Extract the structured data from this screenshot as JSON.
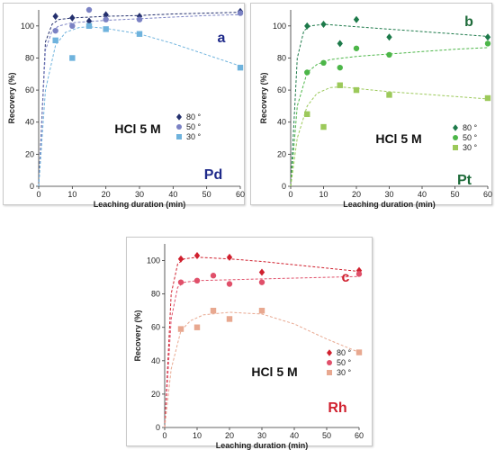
{
  "chart_data": [
    {
      "type": "scatter",
      "panel_label": "a",
      "metal_label": "Pd",
      "condition": "HCl 5 M",
      "xlabel": "Leaching duration (min)",
      "ylabel": "Recovery (%)",
      "xlim": [
        0,
        60
      ],
      "ylim": [
        0,
        110
      ],
      "xticks": [
        0,
        10,
        20,
        30,
        40,
        50,
        60
      ],
      "yticks": [
        0,
        20,
        40,
        60,
        80,
        100
      ],
      "legend_position": "right",
      "colors": {
        "metal": "#1f2a8a",
        "panel": "#1f2a8a"
      },
      "series": [
        {
          "name": "80 °",
          "marker": "diamond",
          "color": "#24306e",
          "points": [
            [
              5,
              106
            ],
            [
              10,
              105
            ],
            [
              15,
              103
            ],
            [
              20,
              107
            ],
            [
              30,
              106
            ],
            [
              60,
              109
            ]
          ],
          "fit": [
            [
              0,
              0
            ],
            [
              2,
              90
            ],
            [
              4,
              101
            ],
            [
              6,
              104
            ],
            [
              10,
              105
            ],
            [
              20,
              106
            ],
            [
              30,
              106.5
            ],
            [
              40,
              107.5
            ],
            [
              50,
              108
            ],
            [
              60,
              108.5
            ]
          ]
        },
        {
          "name": "50 °",
          "marker": "circle",
          "color": "#7b82c4",
          "points": [
            [
              5,
              97
            ],
            [
              10,
              100
            ],
            [
              15,
              110
            ],
            [
              20,
              104
            ],
            [
              30,
              104
            ],
            [
              60,
              108
            ]
          ],
          "fit": [
            [
              0,
              0
            ],
            [
              2,
              85
            ],
            [
              4,
              97
            ],
            [
              6,
              100
            ],
            [
              10,
              102
            ],
            [
              20,
              103.5
            ],
            [
              30,
              104.5
            ],
            [
              40,
              105.5
            ],
            [
              50,
              106.5
            ],
            [
              60,
              107
            ]
          ]
        },
        {
          "name": "30 °",
          "marker": "square",
          "color": "#6fb3dd",
          "points": [
            [
              5,
              91
            ],
            [
              10,
              80
            ],
            [
              15,
              100
            ],
            [
              20,
              98
            ],
            [
              30,
              95
            ],
            [
              60,
              74
            ]
          ],
          "fit": [
            [
              0,
              0
            ],
            [
              2,
              60
            ],
            [
              5,
              88
            ],
            [
              8,
              96
            ],
            [
              12,
              99
            ],
            [
              15,
              99.5
            ],
            [
              20,
              98.5
            ],
            [
              30,
              95
            ],
            [
              40,
              89
            ],
            [
              50,
              82
            ],
            [
              60,
              75
            ]
          ]
        }
      ]
    },
    {
      "type": "scatter",
      "panel_label": "b",
      "metal_label": "Pt",
      "condition": "HCl 5 M",
      "xlabel": "Leaching duration (min)",
      "ylabel": "Recovery (%)",
      "xlim": [
        0,
        60
      ],
      "ylim": [
        0,
        110
      ],
      "xticks": [
        0,
        10,
        20,
        30,
        40,
        50,
        60
      ],
      "yticks": [
        0,
        20,
        40,
        60,
        80,
        100
      ],
      "legend_position": "right",
      "colors": {
        "metal": "#1e6b3a",
        "panel": "#1e6b3a"
      },
      "series": [
        {
          "name": "80 °",
          "marker": "diamond",
          "color": "#1d7a4a",
          "points": [
            [
              5,
              100
            ],
            [
              10,
              101
            ],
            [
              15,
              89
            ],
            [
              20,
              104
            ],
            [
              30,
              93
            ],
            [
              60,
              93
            ]
          ],
          "fit": [
            [
              0,
              0
            ],
            [
              2,
              80
            ],
            [
              4,
              97
            ],
            [
              6,
              100
            ],
            [
              10,
              101
            ],
            [
              20,
              99.5
            ],
            [
              30,
              98
            ],
            [
              40,
              96.5
            ],
            [
              50,
              95
            ],
            [
              60,
              93.5
            ]
          ]
        },
        {
          "name": "50 °",
          "marker": "circle",
          "color": "#4cb648",
          "points": [
            [
              5,
              71
            ],
            [
              10,
              77
            ],
            [
              15,
              74
            ],
            [
              20,
              86
            ],
            [
              30,
              82
            ],
            [
              60,
              89
            ]
          ],
          "fit": [
            [
              0,
              0
            ],
            [
              2,
              50
            ],
            [
              5,
              71
            ],
            [
              8,
              76
            ],
            [
              12,
              79
            ],
            [
              20,
              81
            ],
            [
              30,
              82.5
            ],
            [
              40,
              84
            ],
            [
              50,
              85.5
            ],
            [
              60,
              86.5
            ]
          ]
        },
        {
          "name": "30 °",
          "marker": "square",
          "color": "#9cc95a",
          "points": [
            [
              5,
              45
            ],
            [
              10,
              37
            ],
            [
              15,
              63
            ],
            [
              20,
              60
            ],
            [
              30,
              57
            ],
            [
              60,
              55
            ]
          ],
          "fit": [
            [
              0,
              0
            ],
            [
              2,
              30
            ],
            [
              5,
              50
            ],
            [
              8,
              58
            ],
            [
              12,
              61.5
            ],
            [
              15,
              62
            ],
            [
              20,
              61
            ],
            [
              30,
              59
            ],
            [
              40,
              57.5
            ],
            [
              50,
              56
            ],
            [
              60,
              54.5
            ]
          ]
        }
      ]
    },
    {
      "type": "scatter",
      "panel_label": "c",
      "metal_label": "Rh",
      "condition": "HCl 5 M",
      "xlabel": "Leaching duration (min)",
      "ylabel": "Recovery (%)",
      "xlim": [
        0,
        60
      ],
      "ylim": [
        0,
        110
      ],
      "xticks": [
        0,
        10,
        20,
        30,
        40,
        50,
        60
      ],
      "yticks": [
        0,
        20,
        40,
        60,
        80,
        100
      ],
      "legend_position": "right",
      "colors": {
        "metal": "#d0202e",
        "panel": "#d0202e"
      },
      "series": [
        {
          "name": "80 °",
          "marker": "diamond",
          "color": "#d0202e",
          "points": [
            [
              5,
              101
            ],
            [
              10,
              103
            ],
            [
              20,
              102
            ],
            [
              30,
              93
            ],
            [
              60,
              94
            ]
          ],
          "fit": [
            [
              0,
              0
            ],
            [
              2,
              80
            ],
            [
              4,
              98
            ],
            [
              6,
              101
            ],
            [
              10,
              102
            ],
            [
              20,
              101
            ],
            [
              30,
              99.5
            ],
            [
              40,
              97.5
            ],
            [
              50,
              95.5
            ],
            [
              60,
              93.5
            ]
          ]
        },
        {
          "name": "50 °",
          "marker": "circle",
          "color": "#e0506a",
          "points": [
            [
              5,
              87
            ],
            [
              10,
              88
            ],
            [
              15,
              91
            ],
            [
              20,
              86
            ],
            [
              30,
              87
            ],
            [
              60,
              92
            ]
          ],
          "fit": [
            [
              0,
              0
            ],
            [
              2,
              65
            ],
            [
              4,
              84
            ],
            [
              6,
              87
            ],
            [
              10,
              88
            ],
            [
              20,
              88.5
            ],
            [
              30,
              89
            ],
            [
              40,
              89.5
            ],
            [
              50,
              90
            ],
            [
              60,
              90.5
            ]
          ]
        },
        {
          "name": "30 °",
          "marker": "square",
          "color": "#e8a890",
          "points": [
            [
              5,
              59
            ],
            [
              10,
              60
            ],
            [
              15,
              70
            ],
            [
              20,
              65
            ],
            [
              30,
              70
            ],
            [
              60,
              45
            ]
          ],
          "fit": [
            [
              0,
              0
            ],
            [
              2,
              35
            ],
            [
              5,
              58
            ],
            [
              8,
              64
            ],
            [
              12,
              67.5
            ],
            [
              20,
              69
            ],
            [
              30,
              68
            ],
            [
              40,
              62
            ],
            [
              50,
              53
            ],
            [
              60,
              45
            ]
          ]
        }
      ]
    }
  ]
}
